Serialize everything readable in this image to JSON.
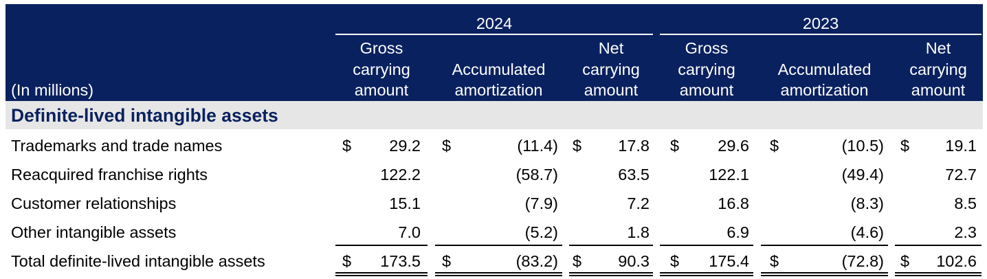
{
  "header": {
    "unit_label": "(In millions)",
    "years": [
      "2024",
      "2023"
    ],
    "columns": [
      {
        "lines": [
          "Gross",
          "carrying",
          "amount"
        ]
      },
      {
        "lines": [
          "Accumulated",
          "amortization"
        ]
      },
      {
        "lines": [
          "Net",
          "carrying",
          "amount"
        ]
      }
    ]
  },
  "section_title": "Definite-lived intangible assets",
  "currency_symbol": "$",
  "rows": [
    {
      "label": "Trademarks and trade names",
      "values": [
        "29.2",
        "(11.4)",
        "17.8",
        "29.6",
        "(10.5)",
        "19.1"
      ],
      "dollar": true
    },
    {
      "label": "Reacquired franchise rights",
      "values": [
        "122.2",
        "(58.7)",
        "63.5",
        "122.1",
        "(49.4)",
        "72.7"
      ],
      "dollar": false
    },
    {
      "label": "Customer relationships",
      "values": [
        "15.1",
        "(7.9)",
        "7.2",
        "16.8",
        "(8.3)",
        "8.5"
      ],
      "dollar": false
    },
    {
      "label": "Other intangible assets",
      "values": [
        "7.0",
        "(5.2)",
        "1.8",
        "6.9",
        "(4.6)",
        "2.3"
      ],
      "dollar": false
    },
    {
      "label": "Total definite-lived intangible assets",
      "values": [
        "173.5",
        "(83.2)",
        "90.3",
        "175.4",
        "(72.8)",
        "102.6"
      ],
      "dollar": true,
      "total": true
    }
  ]
}
